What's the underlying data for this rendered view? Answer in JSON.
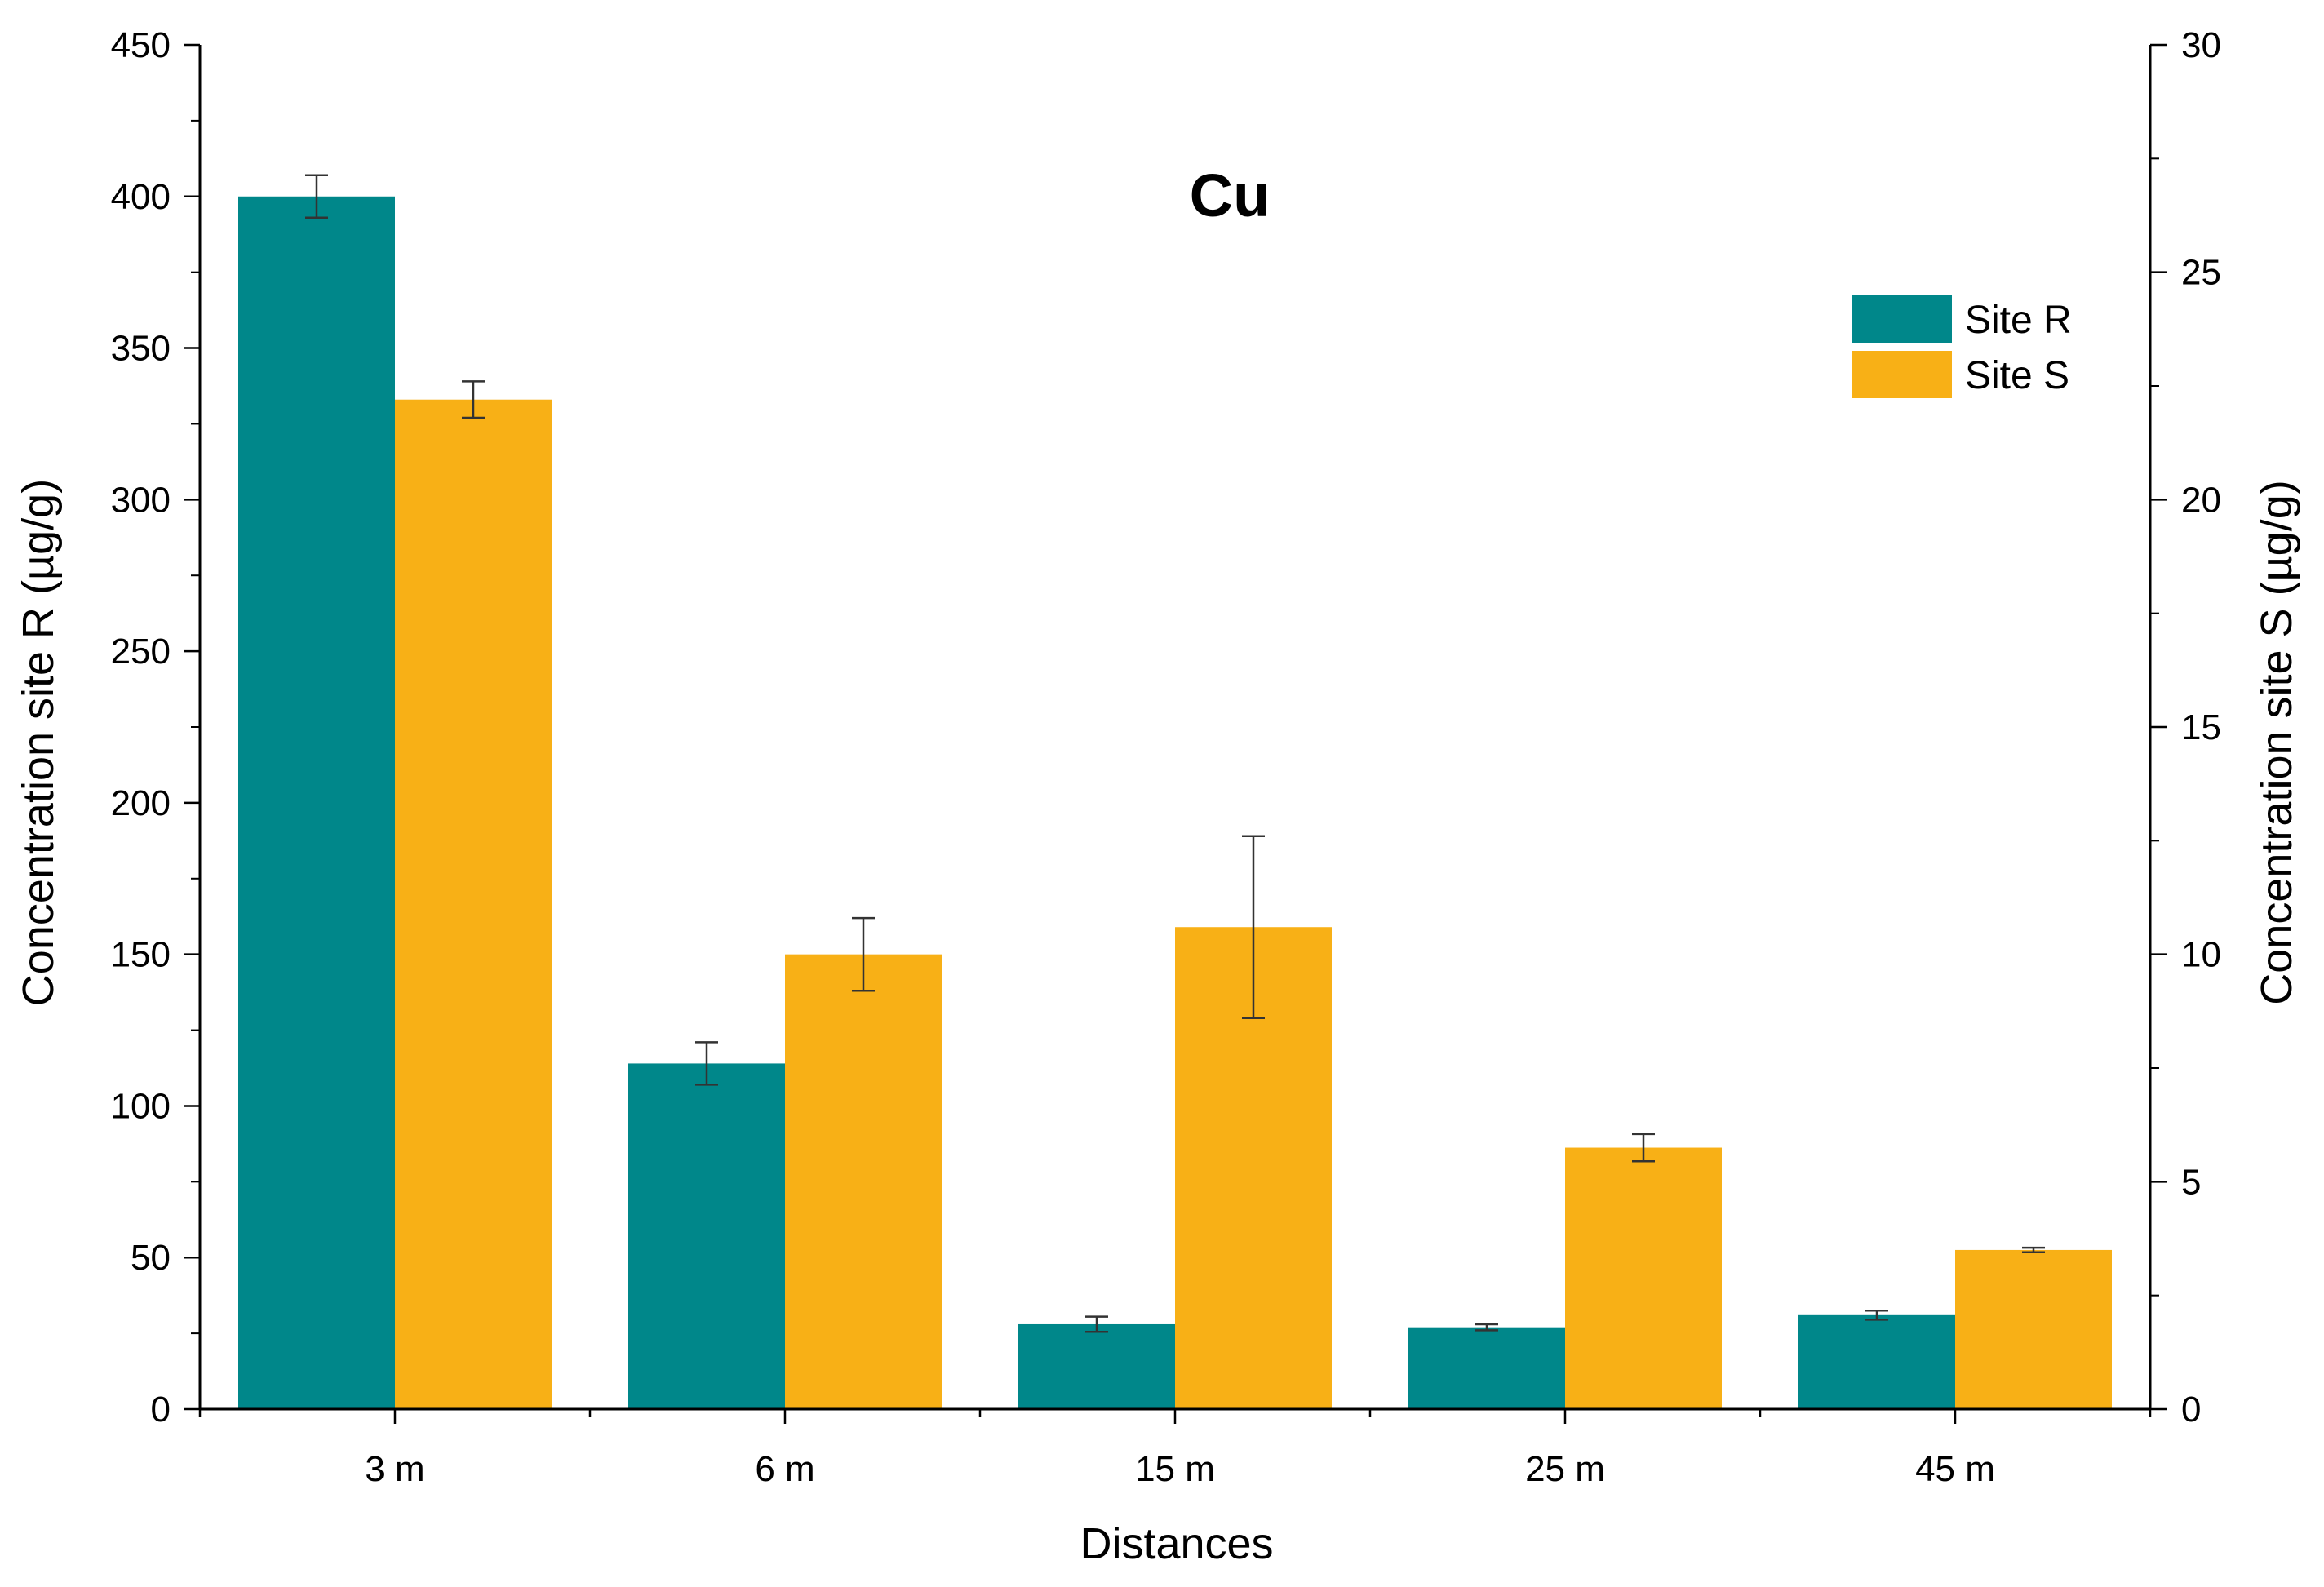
{
  "chart_data": {
    "type": "bar",
    "title": "Cu",
    "xlabel": "Distances",
    "ylabel_left": "Concentration site R (µg/g)",
    "ylabel_right": "Concentration site S (µg/g)",
    "categories": [
      "3 m",
      "6 m",
      "15 m",
      "25 m",
      "45 m"
    ],
    "y_left": {
      "lim": [
        0,
        450
      ],
      "ticks": [
        0,
        50,
        100,
        150,
        200,
        250,
        300,
        350,
        400,
        450
      ]
    },
    "y_right": {
      "lim": [
        0,
        30
      ],
      "ticks": [
        0,
        5,
        10,
        15,
        20,
        25,
        30
      ]
    },
    "legend_position": "top-right",
    "series": [
      {
        "name": "Site R",
        "axis": "left",
        "color": "#00878A",
        "values": [
          400,
          114,
          28,
          27,
          31
        ],
        "errors": [
          7,
          7,
          2.5,
          1,
          1.5
        ]
      },
      {
        "name": "Site S",
        "axis": "right",
        "color": "#F8B016",
        "values": [
          22.2,
          10,
          10.6,
          5.75,
          3.5
        ],
        "errors": [
          0.4,
          0.8,
          2.0,
          0.3,
          0.05
        ]
      }
    ]
  }
}
